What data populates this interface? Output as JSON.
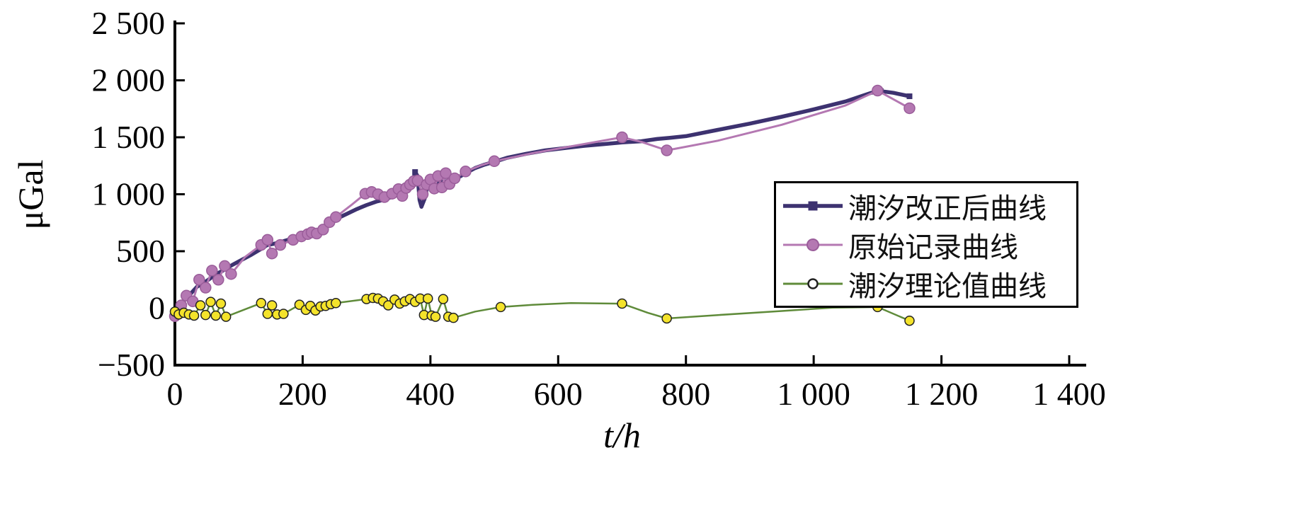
{
  "chart_data": {
    "type": "line",
    "title": "",
    "xlabel": "t/h",
    "ylabel": "μGal",
    "xlim": [
      0,
      1400
    ],
    "ylim": [
      -500,
      2500
    ],
    "grid": false,
    "legend_position": "right-middle",
    "xticks": [
      0,
      200,
      400,
      600,
      800,
      1000,
      1200,
      1400
    ],
    "xtick_labels": [
      "0",
      "200",
      "400",
      "600",
      "800",
      "1 000",
      "1 200",
      "1 400"
    ],
    "yticks": [
      -500,
      0,
      500,
      1000,
      1500,
      2000,
      2500
    ],
    "ytick_labels": [
      "−500",
      "0",
      "500",
      "1 000",
      "1 500",
      "2 000",
      "2 500"
    ],
    "series": [
      {
        "name": "潮汐改正后曲线",
        "color": "#3d3270",
        "line_width": 5.5,
        "marker": {
          "shape": "square",
          "size": 7,
          "fill": "#3d3270",
          "stroke": "#3d3270"
        },
        "points": [
          [
            0,
            -60,
            0
          ],
          [
            8,
            15,
            1
          ],
          [
            15,
            70,
            0
          ],
          [
            25,
            130,
            0
          ],
          [
            35,
            190,
            0
          ],
          [
            45,
            220,
            0
          ],
          [
            55,
            260,
            0
          ],
          [
            65,
            300,
            0
          ],
          [
            75,
            330,
            0
          ],
          [
            90,
            380,
            0
          ],
          [
            105,
            425,
            0
          ],
          [
            120,
            470,
            0
          ],
          [
            135,
            520,
            0
          ],
          [
            145,
            555,
            0
          ],
          [
            155,
            565,
            0
          ],
          [
            165,
            580,
            0
          ],
          [
            180,
            605,
            0
          ],
          [
            195,
            635,
            0
          ],
          [
            205,
            655,
            0
          ],
          [
            215,
            670,
            0
          ],
          [
            225,
            690,
            0
          ],
          [
            235,
            715,
            0
          ],
          [
            245,
            765,
            0
          ],
          [
            255,
            790,
            0
          ],
          [
            270,
            830,
            0
          ],
          [
            285,
            870,
            0
          ],
          [
            300,
            905,
            0
          ],
          [
            315,
            935,
            0
          ],
          [
            330,
            955,
            0
          ],
          [
            345,
            990,
            0
          ],
          [
            355,
            1020,
            0
          ],
          [
            365,
            1065,
            0
          ],
          [
            372,
            1100,
            0
          ],
          [
            376,
            1195,
            1
          ],
          [
            380,
            1160,
            0
          ],
          [
            383,
            950,
            0
          ],
          [
            386,
            890,
            0
          ],
          [
            391,
            960,
            0
          ],
          [
            395,
            1060,
            0
          ],
          [
            400,
            1080,
            0
          ],
          [
            410,
            1095,
            0
          ],
          [
            420,
            1110,
            0
          ],
          [
            430,
            1120,
            0
          ],
          [
            440,
            1135,
            0
          ],
          [
            455,
            1185,
            0
          ],
          [
            470,
            1230,
            0
          ],
          [
            485,
            1260,
            0
          ],
          [
            500,
            1285,
            0
          ],
          [
            520,
            1320,
            0
          ],
          [
            550,
            1355,
            0
          ],
          [
            580,
            1385,
            0
          ],
          [
            610,
            1405,
            0
          ],
          [
            640,
            1425,
            0
          ],
          [
            670,
            1440,
            0
          ],
          [
            700,
            1455,
            0
          ],
          [
            730,
            1465,
            0
          ],
          [
            755,
            1485,
            0
          ],
          [
            775,
            1495,
            0
          ],
          [
            800,
            1510,
            0
          ],
          [
            850,
            1565,
            0
          ],
          [
            900,
            1620,
            0
          ],
          [
            950,
            1680,
            0
          ],
          [
            1000,
            1745,
            0
          ],
          [
            1050,
            1815,
            0
          ],
          [
            1090,
            1890,
            0
          ],
          [
            1105,
            1905,
            1
          ],
          [
            1125,
            1890,
            0
          ],
          [
            1150,
            1860,
            1
          ]
        ]
      },
      {
        "name": "原始记录曲线",
        "color": "#b478b2",
        "line_width": 3,
        "marker": {
          "shape": "circle",
          "size": 7.5,
          "fill": "#b478b2",
          "stroke": "#9a5d9a"
        },
        "points": [
          [
            0,
            -70,
            1
          ],
          [
            10,
            25,
            1
          ],
          [
            18,
            110,
            1
          ],
          [
            28,
            60,
            1
          ],
          [
            38,
            250,
            1
          ],
          [
            48,
            180,
            1
          ],
          [
            58,
            330,
            1
          ],
          [
            68,
            250,
            1
          ],
          [
            78,
            370,
            1
          ],
          [
            88,
            300,
            1
          ],
          [
            110,
            450,
            0
          ],
          [
            135,
            555,
            1
          ],
          [
            145,
            600,
            1
          ],
          [
            152,
            480,
            1
          ],
          [
            165,
            555,
            1
          ],
          [
            185,
            600,
            1
          ],
          [
            198,
            630,
            1
          ],
          [
            208,
            650,
            1
          ],
          [
            214,
            665,
            1
          ],
          [
            222,
            655,
            1
          ],
          [
            232,
            690,
            1
          ],
          [
            242,
            755,
            1
          ],
          [
            252,
            800,
            1
          ],
          [
            275,
            900,
            0
          ],
          [
            298,
            1005,
            1
          ],
          [
            308,
            1020,
            1
          ],
          [
            318,
            1000,
            1
          ],
          [
            328,
            975,
            1
          ],
          [
            340,
            1005,
            1
          ],
          [
            350,
            1045,
            1
          ],
          [
            356,
            985,
            1
          ],
          [
            362,
            1055,
            1
          ],
          [
            368,
            1085,
            1
          ],
          [
            374,
            1115,
            1
          ],
          [
            380,
            1120,
            1
          ],
          [
            388,
            1000,
            1
          ],
          [
            394,
            1085,
            1
          ],
          [
            400,
            1130,
            1
          ],
          [
            406,
            1050,
            1
          ],
          [
            412,
            1160,
            1
          ],
          [
            418,
            1060,
            1
          ],
          [
            424,
            1185,
            1
          ],
          [
            430,
            1090,
            1
          ],
          [
            438,
            1140,
            1
          ],
          [
            455,
            1200,
            1
          ],
          [
            480,
            1255,
            0
          ],
          [
            500,
            1290,
            1
          ],
          [
            560,
            1360,
            0
          ],
          [
            620,
            1420,
            0
          ],
          [
            700,
            1500,
            1
          ],
          [
            730,
            1460,
            0
          ],
          [
            770,
            1385,
            1
          ],
          [
            850,
            1470,
            0
          ],
          [
            950,
            1610,
            0
          ],
          [
            1050,
            1780,
            0
          ],
          [
            1100,
            1910,
            1
          ],
          [
            1150,
            1755,
            1
          ]
        ]
      },
      {
        "name": "潮汐理论值曲线",
        "color": "#5f8b3a",
        "line_width": 2.5,
        "marker": {
          "shape": "circle",
          "size": 6.5,
          "fill": "#f4e32b",
          "stroke": "#222222",
          "legend_fill": "#ffffff"
        },
        "points": [
          [
            0,
            -30,
            1
          ],
          [
            6,
            -55,
            1
          ],
          [
            14,
            -40,
            1
          ],
          [
            22,
            -55,
            1
          ],
          [
            30,
            -65,
            1
          ],
          [
            40,
            25,
            1
          ],
          [
            48,
            -60,
            1
          ],
          [
            56,
            55,
            1
          ],
          [
            64,
            -65,
            1
          ],
          [
            72,
            40,
            1
          ],
          [
            80,
            -75,
            1
          ],
          [
            110,
            -10,
            0
          ],
          [
            135,
            45,
            1
          ],
          [
            145,
            -50,
            1
          ],
          [
            152,
            25,
            1
          ],
          [
            160,
            -55,
            1
          ],
          [
            170,
            -50,
            1
          ],
          [
            195,
            30,
            1
          ],
          [
            205,
            -15,
            1
          ],
          [
            212,
            20,
            1
          ],
          [
            220,
            -20,
            1
          ],
          [
            228,
            15,
            1
          ],
          [
            236,
            20,
            1
          ],
          [
            244,
            35,
            1
          ],
          [
            252,
            45,
            1
          ],
          [
            300,
            80,
            1
          ],
          [
            310,
            90,
            1
          ],
          [
            318,
            85,
            1
          ],
          [
            326,
            60,
            1
          ],
          [
            334,
            25,
            1
          ],
          [
            344,
            75,
            1
          ],
          [
            352,
            40,
            1
          ],
          [
            360,
            60,
            1
          ],
          [
            368,
            80,
            1
          ],
          [
            376,
            55,
            1
          ],
          [
            384,
            85,
            1
          ],
          [
            390,
            -60,
            1
          ],
          [
            396,
            85,
            1
          ],
          [
            402,
            -65,
            1
          ],
          [
            408,
            -75,
            1
          ],
          [
            420,
            80,
            1
          ],
          [
            428,
            -75,
            1
          ],
          [
            436,
            -85,
            1
          ],
          [
            470,
            -30,
            0
          ],
          [
            510,
            10,
            1
          ],
          [
            560,
            30,
            0
          ],
          [
            620,
            45,
            0
          ],
          [
            700,
            40,
            1
          ],
          [
            740,
            -40,
            0
          ],
          [
            770,
            -90,
            1
          ],
          [
            850,
            -60,
            0
          ],
          [
            950,
            -25,
            0
          ],
          [
            1030,
            5,
            0
          ],
          [
            1100,
            10,
            1
          ],
          [
            1150,
            -110,
            1
          ]
        ]
      }
    ]
  }
}
